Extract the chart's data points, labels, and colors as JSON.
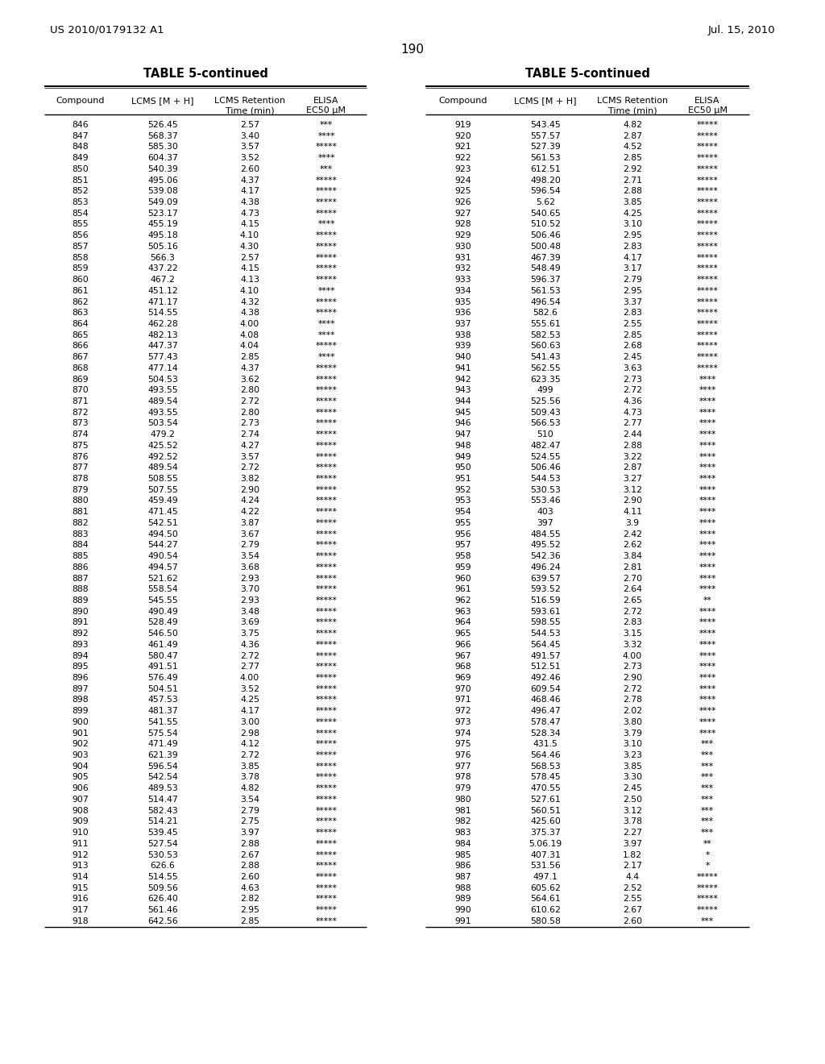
{
  "header_left": "US 2010/0179132 A1",
  "header_right": "Jul. 15, 2010",
  "page_number": "190",
  "table_title": "TABLE 5-continued",
  "bg_color": "#ffffff",
  "text_color": "#000000",
  "left_data": [
    [
      "846",
      "526.45",
      "2.57",
      "***"
    ],
    [
      "847",
      "568.37",
      "3.40",
      "****"
    ],
    [
      "848",
      "585.30",
      "3.57",
      "*****"
    ],
    [
      "849",
      "604.37",
      "3.52",
      "****"
    ],
    [
      "850",
      "540.39",
      "2.60",
      "***"
    ],
    [
      "851",
      "495.06",
      "4.37",
      "*****"
    ],
    [
      "852",
      "539.08",
      "4.17",
      "*****"
    ],
    [
      "853",
      "549.09",
      "4.38",
      "*****"
    ],
    [
      "854",
      "523.17",
      "4.73",
      "*****"
    ],
    [
      "855",
      "455.19",
      "4.15",
      "****"
    ],
    [
      "856",
      "495.18",
      "4.10",
      "*****"
    ],
    [
      "857",
      "505.16",
      "4.30",
      "*****"
    ],
    [
      "858",
      "566.3",
      "2.57",
      "*****"
    ],
    [
      "859",
      "437.22",
      "4.15",
      "*****"
    ],
    [
      "860",
      "467.2",
      "4.13",
      "*****"
    ],
    [
      "861",
      "451.12",
      "4.10",
      "****"
    ],
    [
      "862",
      "471.17",
      "4.32",
      "*****"
    ],
    [
      "863",
      "514.55",
      "4.38",
      "*****"
    ],
    [
      "864",
      "462.28",
      "4.00",
      "****"
    ],
    [
      "865",
      "482.13",
      "4.08",
      "****"
    ],
    [
      "866",
      "447.37",
      "4.04",
      "*****"
    ],
    [
      "867",
      "577.43",
      "2.85",
      "****"
    ],
    [
      "868",
      "477.14",
      "4.37",
      "*****"
    ],
    [
      "869",
      "504.53",
      "3.62",
      "*****"
    ],
    [
      "870",
      "493.55",
      "2.80",
      "*****"
    ],
    [
      "871",
      "489.54",
      "2.72",
      "*****"
    ],
    [
      "872",
      "493.55",
      "2.80",
      "*****"
    ],
    [
      "873",
      "503.54",
      "2.73",
      "*****"
    ],
    [
      "874",
      "479.2",
      "2.74",
      "*****"
    ],
    [
      "875",
      "425.52",
      "4.27",
      "*****"
    ],
    [
      "876",
      "492.52",
      "3.57",
      "*****"
    ],
    [
      "877",
      "489.54",
      "2.72",
      "*****"
    ],
    [
      "878",
      "508.55",
      "3.82",
      "*****"
    ],
    [
      "879",
      "507.55",
      "2.90",
      "*****"
    ],
    [
      "880",
      "459.49",
      "4.24",
      "*****"
    ],
    [
      "881",
      "471.45",
      "4.22",
      "*****"
    ],
    [
      "882",
      "542.51",
      "3.87",
      "*****"
    ],
    [
      "883",
      "494.50",
      "3.67",
      "*****"
    ],
    [
      "884",
      "544.27",
      "2.79",
      "*****"
    ],
    [
      "885",
      "490.54",
      "3.54",
      "*****"
    ],
    [
      "886",
      "494.57",
      "3.68",
      "*****"
    ],
    [
      "887",
      "521.62",
      "2.93",
      "*****"
    ],
    [
      "888",
      "558.54",
      "3.70",
      "*****"
    ],
    [
      "889",
      "545.55",
      "2.93",
      "*****"
    ],
    [
      "890",
      "490.49",
      "3.48",
      "*****"
    ],
    [
      "891",
      "528.49",
      "3.69",
      "*****"
    ],
    [
      "892",
      "546.50",
      "3.75",
      "*****"
    ],
    [
      "893",
      "461.49",
      "4.36",
      "*****"
    ],
    [
      "894",
      "580.47",
      "2.72",
      "*****"
    ],
    [
      "895",
      "491.51",
      "2.77",
      "*****"
    ],
    [
      "896",
      "576.49",
      "4.00",
      "*****"
    ],
    [
      "897",
      "504.51",
      "3.52",
      "*****"
    ],
    [
      "898",
      "457.53",
      "4.25",
      "*****"
    ],
    [
      "899",
      "481.37",
      "4.17",
      "*****"
    ],
    [
      "900",
      "541.55",
      "3.00",
      "*****"
    ],
    [
      "901",
      "575.54",
      "2.98",
      "*****"
    ],
    [
      "902",
      "471.49",
      "4.12",
      "*****"
    ],
    [
      "903",
      "621.39",
      "2.72",
      "*****"
    ],
    [
      "904",
      "596.54",
      "3.85",
      "*****"
    ],
    [
      "905",
      "542.54",
      "3.78",
      "*****"
    ],
    [
      "906",
      "489.53",
      "4.82",
      "*****"
    ],
    [
      "907",
      "514.47",
      "3.54",
      "*****"
    ],
    [
      "908",
      "582.43",
      "2.79",
      "*****"
    ],
    [
      "909",
      "514.21",
      "2.75",
      "*****"
    ],
    [
      "910",
      "539.45",
      "3.97",
      "*****"
    ],
    [
      "911",
      "527.54",
      "2.88",
      "*****"
    ],
    [
      "912",
      "530.53",
      "2.67",
      "*****"
    ],
    [
      "913",
      "626.6",
      "2.88",
      "*****"
    ],
    [
      "914",
      "514.55",
      "2.60",
      "*****"
    ],
    [
      "915",
      "509.56",
      "4.63",
      "*****"
    ],
    [
      "916",
      "626.40",
      "2.82",
      "*****"
    ],
    [
      "917",
      "561.46",
      "2.95",
      "*****"
    ],
    [
      "918",
      "642.56",
      "2.85",
      "*****"
    ]
  ],
  "right_data": [
    [
      "919",
      "543.45",
      "4.82",
      "*****"
    ],
    [
      "920",
      "557.57",
      "2.87",
      "*****"
    ],
    [
      "921",
      "527.39",
      "4.52",
      "*****"
    ],
    [
      "922",
      "561.53",
      "2.85",
      "*****"
    ],
    [
      "923",
      "612.51",
      "2.92",
      "*****"
    ],
    [
      "924",
      "498.20",
      "2.71",
      "*****"
    ],
    [
      "925",
      "596.54",
      "2.88",
      "*****"
    ],
    [
      "926",
      "5.62",
      "3.85",
      "*****"
    ],
    [
      "927",
      "540.65",
      "4.25",
      "*****"
    ],
    [
      "928",
      "510.52",
      "3.10",
      "*****"
    ],
    [
      "929",
      "506.46",
      "2.95",
      "*****"
    ],
    [
      "930",
      "500.48",
      "2.83",
      "*****"
    ],
    [
      "931",
      "467.39",
      "4.17",
      "*****"
    ],
    [
      "932",
      "548.49",
      "3.17",
      "*****"
    ],
    [
      "933",
      "596.37",
      "2.79",
      "*****"
    ],
    [
      "934",
      "561.53",
      "2.95",
      "*****"
    ],
    [
      "935",
      "496.54",
      "3.37",
      "*****"
    ],
    [
      "936",
      "582.6",
      "2.83",
      "*****"
    ],
    [
      "937",
      "555.61",
      "2.55",
      "*****"
    ],
    [
      "938",
      "582.53",
      "2.85",
      "*****"
    ],
    [
      "939",
      "560.63",
      "2.68",
      "*****"
    ],
    [
      "940",
      "541.43",
      "2.45",
      "*****"
    ],
    [
      "941",
      "562.55",
      "3.63",
      "*****"
    ],
    [
      "942",
      "623.35",
      "2.73",
      "****"
    ],
    [
      "943",
      "499",
      "2.72",
      "****"
    ],
    [
      "944",
      "525.56",
      "4.36",
      "****"
    ],
    [
      "945",
      "509.43",
      "4.73",
      "****"
    ],
    [
      "946",
      "566.53",
      "2.77",
      "****"
    ],
    [
      "947",
      "510",
      "2.44",
      "****"
    ],
    [
      "948",
      "482.47",
      "2.88",
      "****"
    ],
    [
      "949",
      "524.55",
      "3.22",
      "****"
    ],
    [
      "950",
      "506.46",
      "2.87",
      "****"
    ],
    [
      "951",
      "544.53",
      "3.27",
      "****"
    ],
    [
      "952",
      "530.53",
      "3.12",
      "****"
    ],
    [
      "953",
      "553.46",
      "2.90",
      "****"
    ],
    [
      "954",
      "403",
      "4.11",
      "****"
    ],
    [
      "955",
      "397",
      "3.9",
      "****"
    ],
    [
      "956",
      "484.55",
      "2.42",
      "****"
    ],
    [
      "957",
      "495.52",
      "2.62",
      "****"
    ],
    [
      "958",
      "542.36",
      "3.84",
      "****"
    ],
    [
      "959",
      "496.24",
      "2.81",
      "****"
    ],
    [
      "960",
      "639.57",
      "2.70",
      "****"
    ],
    [
      "961",
      "593.52",
      "2.64",
      "****"
    ],
    [
      "962",
      "516.59",
      "2.65",
      "**"
    ],
    [
      "963",
      "593.61",
      "2.72",
      "****"
    ],
    [
      "964",
      "598.55",
      "2.83",
      "****"
    ],
    [
      "965",
      "544.53",
      "3.15",
      "****"
    ],
    [
      "966",
      "564.45",
      "3.32",
      "****"
    ],
    [
      "967",
      "491.57",
      "4.00",
      "****"
    ],
    [
      "968",
      "512.51",
      "2.73",
      "****"
    ],
    [
      "969",
      "492.46",
      "2.90",
      "****"
    ],
    [
      "970",
      "609.54",
      "2.72",
      "****"
    ],
    [
      "971",
      "468.46",
      "2.78",
      "****"
    ],
    [
      "972",
      "496.47",
      "2.02",
      "****"
    ],
    [
      "973",
      "578.47",
      "3.80",
      "****"
    ],
    [
      "974",
      "528.34",
      "3.79",
      "****"
    ],
    [
      "975",
      "431.5",
      "3.10",
      "***"
    ],
    [
      "976",
      "564.46",
      "3.23",
      "***"
    ],
    [
      "977",
      "568.53",
      "3.85",
      "***"
    ],
    [
      "978",
      "578.45",
      "3.30",
      "***"
    ],
    [
      "979",
      "470.55",
      "2.45",
      "***"
    ],
    [
      "980",
      "527.61",
      "2.50",
      "***"
    ],
    [
      "981",
      "560.51",
      "3.12",
      "***"
    ],
    [
      "982",
      "425.60",
      "3.78",
      "***"
    ],
    [
      "983",
      "375.37",
      "2.27",
      "***"
    ],
    [
      "984",
      "5.06.19",
      "3.97",
      "**"
    ],
    [
      "985",
      "407.31",
      "1.82",
      "*"
    ],
    [
      "986",
      "531.56",
      "2.17",
      "*"
    ],
    [
      "987",
      "497.1",
      "4.4",
      "*****"
    ],
    [
      "988",
      "605.62",
      "2.52",
      "*****"
    ],
    [
      "989",
      "564.61",
      "2.55",
      "*****"
    ],
    [
      "990",
      "610.62",
      "2.67",
      "*****"
    ],
    [
      "991",
      "580.58",
      "2.60",
      "***"
    ]
  ]
}
